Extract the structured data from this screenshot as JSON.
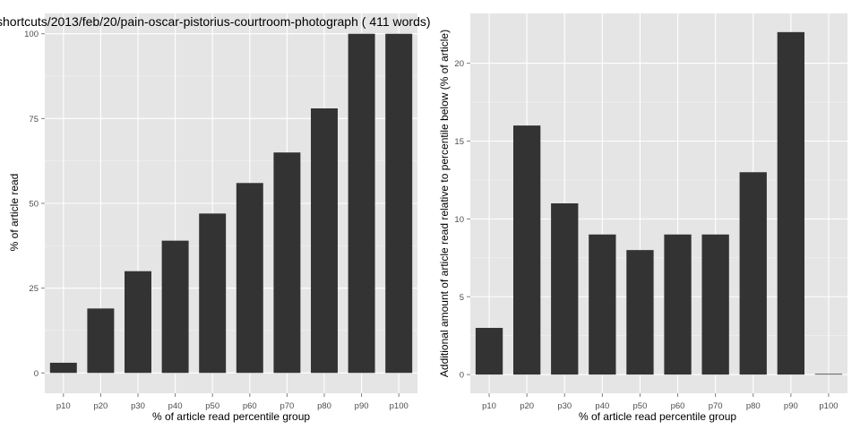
{
  "chart_data": [
    {
      "type": "bar",
      "title": "shortcuts/2013/feb/20/pain-oscar-pistorius-courtroom-photograph ( 411 words)",
      "xlabel": "% of article read percentile group",
      "ylabel": "% of article read",
      "categories": [
        "p10",
        "p20",
        "p30",
        "p40",
        "p50",
        "p60",
        "p70",
        "p80",
        "p90",
        "p100"
      ],
      "values": [
        3,
        19,
        30,
        39,
        47,
        56,
        65,
        78,
        100,
        100
      ],
      "ylim": [
        -6,
        106
      ],
      "yticks": [
        0,
        25,
        50,
        75,
        100
      ],
      "grid": true,
      "colors": {
        "bar": "#333333",
        "panel": "#e5e5e5",
        "grid_major": "#ffffff",
        "grid_minor": "#f2f2f2"
      }
    },
    {
      "type": "bar",
      "title": "",
      "xlabel": "% of article read percentile group",
      "ylabel": "Additional amount of article read relative to percentile below (% of article)",
      "categories": [
        "p10",
        "p20",
        "p30",
        "p40",
        "p50",
        "p60",
        "p70",
        "p80",
        "p90",
        "p100"
      ],
      "values": [
        3,
        16,
        11,
        9,
        8,
        9,
        9,
        13,
        22,
        0
      ],
      "ylim": [
        -1.2,
        23.2
      ],
      "yticks": [
        0,
        5,
        10,
        15,
        20
      ],
      "grid": true,
      "colors": {
        "bar": "#333333",
        "panel": "#e5e5e5",
        "grid_major": "#ffffff",
        "grid_minor": "#f2f2f2"
      }
    }
  ]
}
